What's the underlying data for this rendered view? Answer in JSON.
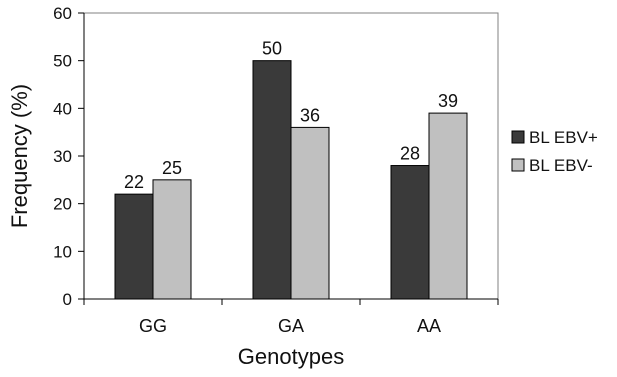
{
  "chart_data": {
    "type": "bar",
    "categories": [
      "GG",
      "GA",
      "AA"
    ],
    "series": [
      {
        "name": "BL EBV+",
        "values": [
          22,
          50,
          28
        ],
        "color": "#3a3a3a"
      },
      {
        "name": "BL EBV-",
        "values": [
          25,
          36,
          39
        ],
        "color": "#c0c0c0"
      }
    ],
    "xlabel": "Genotypes",
    "ylabel": "Frequency (%)",
    "ylim": [
      0,
      60
    ],
    "yticks": [
      0,
      10,
      20,
      30,
      40,
      50,
      60
    ],
    "grid": false,
    "legend_position": "right"
  }
}
